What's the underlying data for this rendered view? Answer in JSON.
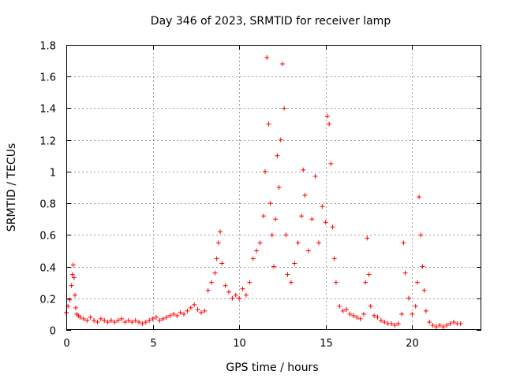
{
  "chart_data": {
    "type": "scatter",
    "title": "Day 346 of 2023, SRMTID for receiver lamp",
    "xlabel": "GPS time / hours",
    "ylabel": "SRMTID / TECUs",
    "xlim": [
      0,
      24
    ],
    "ylim": [
      0,
      1.8
    ],
    "xticks": [
      0,
      5,
      10,
      15,
      20
    ],
    "yticks": [
      0,
      0.2,
      0.4,
      0.6,
      0.8,
      1,
      1.2,
      1.4,
      1.6,
      1.8
    ],
    "xtick_labels": [
      "0",
      "5",
      "10",
      "15",
      "20"
    ],
    "ytick_labels": [
      "0",
      "0.2",
      "0.4",
      "0.6",
      "0.8",
      "1",
      "1.2",
      "1.4",
      "1.6",
      "1.8"
    ],
    "grid": true,
    "marker": "+",
    "color": "#ff0000",
    "series": [
      {
        "name": "SRMTID",
        "x": [
          0.0,
          0.1,
          0.2,
          0.3,
          0.35,
          0.4,
          0.45,
          0.5,
          0.55,
          0.6,
          0.7,
          0.8,
          1.0,
          1.2,
          1.4,
          1.6,
          1.8,
          2.0,
          2.2,
          2.4,
          2.6,
          2.8,
          3.0,
          3.2,
          3.4,
          3.6,
          3.8,
          4.0,
          4.2,
          4.4,
          4.6,
          4.8,
          5.0,
          5.2,
          5.4,
          5.6,
          5.8,
          6.0,
          6.2,
          6.4,
          6.6,
          6.8,
          7.0,
          7.2,
          7.4,
          7.6,
          7.8,
          8.0,
          8.2,
          8.4,
          8.6,
          8.7,
          8.8,
          8.9,
          9.0,
          9.2,
          9.4,
          9.6,
          9.8,
          10.0,
          10.2,
          10.4,
          10.6,
          10.8,
          11.0,
          11.2,
          11.4,
          11.5,
          11.6,
          11.7,
          11.8,
          11.9,
          12.0,
          12.1,
          12.2,
          12.3,
          12.4,
          12.5,
          12.6,
          12.7,
          12.8,
          13.0,
          13.2,
          13.4,
          13.6,
          13.7,
          13.8,
          14.0,
          14.2,
          14.4,
          14.6,
          14.8,
          15.0,
          15.1,
          15.2,
          15.3,
          15.4,
          15.5,
          15.6,
          15.8,
          16.0,
          16.2,
          16.4,
          16.6,
          16.8,
          17.0,
          17.2,
          17.3,
          17.4,
          17.5,
          17.6,
          17.8,
          18.0,
          18.2,
          18.4,
          18.6,
          18.8,
          19.0,
          19.2,
          19.4,
          19.5,
          19.6,
          19.8,
          20.0,
          20.2,
          20.3,
          20.4,
          20.5,
          20.6,
          20.7,
          20.8,
          21.0,
          21.2,
          21.4,
          21.6,
          21.8,
          22.0,
          22.2,
          22.4,
          22.6,
          22.8
        ],
        "y": [
          0.11,
          0.15,
          0.19,
          0.28,
          0.35,
          0.41,
          0.33,
          0.22,
          0.14,
          0.1,
          0.09,
          0.08,
          0.07,
          0.06,
          0.08,
          0.06,
          0.05,
          0.07,
          0.06,
          0.05,
          0.06,
          0.05,
          0.06,
          0.07,
          0.05,
          0.06,
          0.05,
          0.06,
          0.05,
          0.04,
          0.05,
          0.06,
          0.07,
          0.08,
          0.06,
          0.07,
          0.08,
          0.09,
          0.1,
          0.09,
          0.11,
          0.1,
          0.12,
          0.14,
          0.16,
          0.13,
          0.11,
          0.12,
          0.25,
          0.3,
          0.36,
          0.45,
          0.55,
          0.62,
          0.42,
          0.28,
          0.24,
          0.2,
          0.22,
          0.2,
          0.26,
          0.22,
          0.3,
          0.45,
          0.5,
          0.55,
          0.72,
          1.0,
          1.72,
          1.3,
          0.8,
          0.6,
          0.4,
          0.7,
          1.1,
          0.9,
          1.2,
          1.68,
          1.4,
          0.6,
          0.35,
          0.3,
          0.42,
          0.55,
          0.72,
          1.01,
          0.85,
          0.5,
          0.7,
          0.97,
          0.55,
          0.78,
          0.68,
          1.35,
          1.3,
          1.05,
          0.65,
          0.45,
          0.3,
          0.15,
          0.12,
          0.13,
          0.1,
          0.09,
          0.08,
          0.07,
          0.1,
          0.3,
          0.58,
          0.35,
          0.15,
          0.09,
          0.08,
          0.06,
          0.05,
          0.04,
          0.04,
          0.03,
          0.04,
          0.1,
          0.55,
          0.36,
          0.2,
          0.1,
          0.15,
          0.3,
          0.84,
          0.6,
          0.4,
          0.25,
          0.12,
          0.05,
          0.03,
          0.02,
          0.03,
          0.02,
          0.03,
          0.04,
          0.05,
          0.04,
          0.04
        ]
      }
    ]
  }
}
